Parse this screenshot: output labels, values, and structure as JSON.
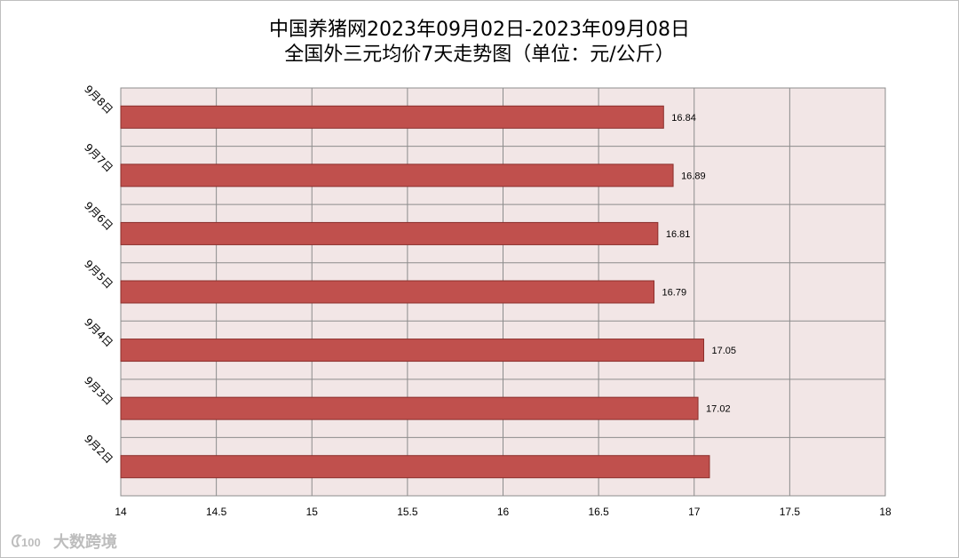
{
  "chart_data": {
    "type": "bar",
    "orientation": "horizontal",
    "title": "中国养猪网2023年09月02日-2023年09月08日",
    "subtitle": "全国外三元均价7天走势图（单位：元/公斤）",
    "categories": [
      "9月8日",
      "9月7日",
      "9月6日",
      "9月5日",
      "9月4日",
      "9月3日",
      "9月2日"
    ],
    "values": [
      16.84,
      16.89,
      16.81,
      16.79,
      17.05,
      17.02,
      17.08
    ],
    "data_labels": [
      "16.84",
      "16.89",
      "16.81",
      "16.79",
      "17.05",
      "17.02",
      ""
    ],
    "xlim": [
      14,
      18
    ],
    "x_ticks": [
      14,
      14.5,
      15,
      15.5,
      16,
      16.5,
      17,
      17.5,
      18
    ],
    "grid": true,
    "bar_color": "#c0504d",
    "plot_background": "#f2e6e6"
  },
  "watermark": {
    "icon": "logo-icon",
    "text": "大数跨境"
  }
}
